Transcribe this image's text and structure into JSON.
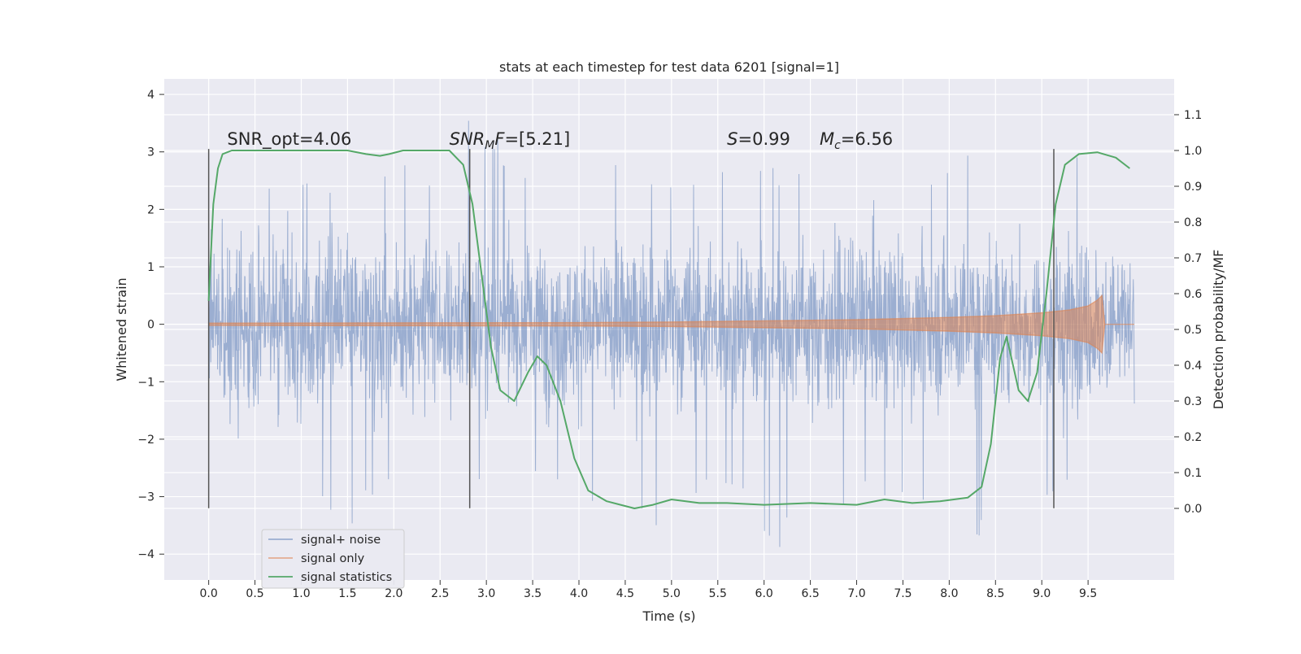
{
  "chart_data": {
    "type": "line",
    "title": "stats at each timestep for test data 6201 [signal=1]",
    "xlabel": "Time (s)",
    "ylabel_left": "Whitened strain",
    "ylabel_right": "Detection probability/MF",
    "xlim": [
      -0.48,
      10.43
    ],
    "ylim_left": [
      -4.45,
      4.27
    ],
    "ylim_right": [
      -0.2,
      1.2
    ],
    "x_ticks": [
      "0.0",
      "0.5",
      "1.0",
      "1.5",
      "2.0",
      "2.5",
      "3.0",
      "3.5",
      "4.0",
      "4.5",
      "5.0",
      "5.5",
      "6.0",
      "6.5",
      "7.0",
      "7.5",
      "8.0",
      "8.5",
      "9.0",
      "9.5"
    ],
    "y_ticks_left": [
      "−4",
      "−3",
      "−2",
      "−1",
      "0",
      "1",
      "2",
      "3",
      "4"
    ],
    "y_ticks_right": [
      "0.0",
      "0.1",
      "0.2",
      "0.3",
      "0.4",
      "0.5",
      "0.6",
      "0.7",
      "0.8",
      "0.9",
      "1.0",
      "1.1"
    ],
    "grid": true,
    "legend_position": "lower-left",
    "series": [
      {
        "name": "signal+ noise",
        "color": "#4c72b0",
        "axis": "left",
        "x_range": [
          0.0,
          10.0
        ],
        "envelope_upper": [
          1.6,
          2.5,
          2.8,
          2.6,
          2.9,
          2.8,
          3.9,
          2.7,
          2.8,
          2.9,
          2.6,
          2.8,
          3.0,
          2.7,
          2.9,
          2.8,
          2.7,
          2.9,
          3.8,
          2.8,
          3.6,
          2.7
        ],
        "envelope_lower": [
          -2.0,
          -2.4,
          -2.9,
          -3.6,
          -3.1,
          -3.3,
          -2.9,
          -2.8,
          -3.0,
          -3.3,
          -3.7,
          -3.0,
          -3.2,
          -4.0,
          -3.5,
          -3.0,
          -3.4,
          -3.9,
          -3.6,
          -3.0,
          -3.3,
          -2.9
        ]
      },
      {
        "name": "signal only",
        "color": "#dd8452",
        "axis": "left",
        "points": [
          [
            0.0,
            0.02
          ],
          [
            4.0,
            0.03
          ],
          [
            5.0,
            0.04
          ],
          [
            6.0,
            0.06
          ],
          [
            7.0,
            0.08
          ],
          [
            8.0,
            0.12
          ],
          [
            8.5,
            0.15
          ],
          [
            9.0,
            0.2
          ],
          [
            9.3,
            0.25
          ],
          [
            9.5,
            0.32
          ],
          [
            9.6,
            0.42
          ],
          [
            9.65,
            0.5
          ],
          [
            9.68,
            0.0
          ],
          [
            10.0,
            0.0
          ]
        ]
      },
      {
        "name": "signal statistics",
        "color": "#55a868",
        "axis": "right",
        "points": [
          [
            0.0,
            0.58
          ],
          [
            0.05,
            0.85
          ],
          [
            0.1,
            0.95
          ],
          [
            0.15,
            0.99
          ],
          [
            0.25,
            1.0
          ],
          [
            1.5,
            1.0
          ],
          [
            1.7,
            0.99
          ],
          [
            1.85,
            0.985
          ],
          [
            1.95,
            0.99
          ],
          [
            2.1,
            1.0
          ],
          [
            2.6,
            1.0
          ],
          [
            2.75,
            0.96
          ],
          [
            2.85,
            0.85
          ],
          [
            2.95,
            0.65
          ],
          [
            3.05,
            0.45
          ],
          [
            3.15,
            0.33
          ],
          [
            3.3,
            0.3
          ],
          [
            3.45,
            0.38
          ],
          [
            3.55,
            0.425
          ],
          [
            3.65,
            0.4
          ],
          [
            3.8,
            0.3
          ],
          [
            3.95,
            0.14
          ],
          [
            4.1,
            0.05
          ],
          [
            4.3,
            0.02
          ],
          [
            4.6,
            0.0
          ],
          [
            4.8,
            0.01
          ],
          [
            5.0,
            0.025
          ],
          [
            5.3,
            0.015
          ],
          [
            5.6,
            0.015
          ],
          [
            6.0,
            0.01
          ],
          [
            6.5,
            0.015
          ],
          [
            7.0,
            0.01
          ],
          [
            7.3,
            0.025
          ],
          [
            7.6,
            0.015
          ],
          [
            7.9,
            0.02
          ],
          [
            8.2,
            0.03
          ],
          [
            8.35,
            0.06
          ],
          [
            8.45,
            0.18
          ],
          [
            8.55,
            0.42
          ],
          [
            8.62,
            0.48
          ],
          [
            8.75,
            0.33
          ],
          [
            8.85,
            0.3
          ],
          [
            8.95,
            0.38
          ],
          [
            9.05,
            0.6
          ],
          [
            9.15,
            0.85
          ],
          [
            9.25,
            0.96
          ],
          [
            9.4,
            0.99
          ],
          [
            9.6,
            0.995
          ],
          [
            9.8,
            0.98
          ],
          [
            9.95,
            0.95
          ]
        ]
      }
    ],
    "vertical_lines": [
      0.0,
      2.82,
      9.13
    ],
    "vertical_line_range_left": [
      -3.2,
      3.05
    ],
    "annotations": [
      {
        "x": 0.2,
        "y": 3.05,
        "text": "SNR_opt=4.06",
        "parts": [
          {
            "t": "SNR_opt=4.06",
            "italic": false
          }
        ]
      },
      {
        "x": 2.6,
        "y": 3.05,
        "text": "SNRMF=[5.21]",
        "parts": [
          {
            "t": "SNR",
            "italic": true
          },
          {
            "t": "M",
            "italic": true,
            "sub": true
          },
          {
            "t": "F",
            "italic": true
          },
          {
            "t": "=[5.21]",
            "italic": false
          }
        ]
      },
      {
        "x": 5.6,
        "y": 3.05,
        "text": "S=0.99",
        "parts": [
          {
            "t": "S",
            "italic": true
          },
          {
            "t": "=0.99",
            "italic": false
          }
        ]
      },
      {
        "x": 6.6,
        "y": 3.05,
        "text": "Mc=6.56",
        "parts": [
          {
            "t": "M",
            "italic": true
          },
          {
            "t": "c",
            "italic": true,
            "sub": true
          },
          {
            "t": "=6.56",
            "italic": false
          }
        ]
      }
    ]
  }
}
